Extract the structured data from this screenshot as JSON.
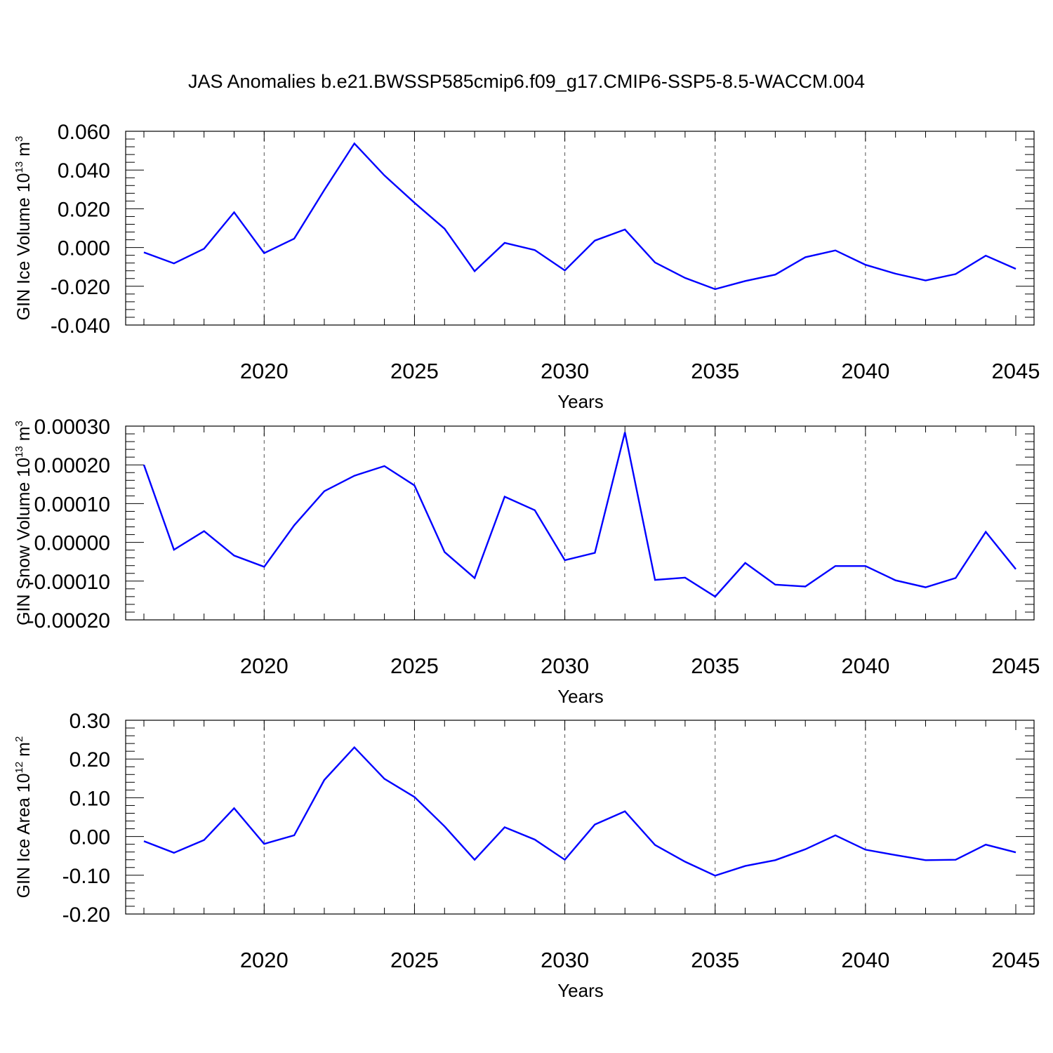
{
  "chart_data": {
    "title": "JAS Anomalies b.e21.BWSSP585cmip6.f09_g17.CMIP6-SSP5-8.5-WACCM.004",
    "series_color": "#0000ff",
    "plots": [
      {
        "type": "line",
        "ylabel": "GIN Ice Volume 10",
        "ylabel_exponent": "13",
        "ylabel_unit": "m",
        "ylabel_unit_exponent": "3",
        "xlabel": "Years",
        "xlim": [
          2016,
          2045
        ],
        "ylim": [
          -0.04,
          0.06
        ],
        "ytick_values": [
          0.06,
          0.04,
          0.02,
          0.0,
          -0.02,
          -0.04
        ],
        "ytick_labels": [
          "0.060",
          "0.040",
          "0.020",
          "0.000",
          "-0.020",
          "-0.040"
        ],
        "xtick_values": [
          2020,
          2025,
          2030,
          2035,
          2040,
          2045
        ],
        "xtick_labels": [
          "2020",
          "2025",
          "2030",
          "2035",
          "2040",
          "2045"
        ],
        "x": [
          2016,
          2017,
          2018,
          2019,
          2020,
          2021,
          2022,
          2023,
          2024,
          2025,
          2026,
          2027,
          2028,
          2029,
          2030,
          2031,
          2032,
          2033,
          2034,
          2035,
          2036,
          2037,
          2038,
          2039,
          2040,
          2041,
          2042,
          2043,
          2044,
          2045
        ],
        "values": [
          -0.0025,
          -0.0082,
          -0.0006,
          0.0182,
          -0.0029,
          0.0046,
          0.0297,
          0.0537,
          0.0372,
          0.0231,
          0.0097,
          -0.0122,
          0.0024,
          -0.0013,
          -0.0118,
          0.0036,
          0.0093,
          -0.0077,
          -0.0157,
          -0.0215,
          -0.0173,
          -0.014,
          -0.005,
          -0.0015,
          -0.0089,
          -0.0135,
          -0.017,
          -0.0137,
          -0.0042,
          -0.011
        ]
      },
      {
        "type": "line",
        "ylabel": "GIN Snow Volume 10",
        "ylabel_exponent": "13",
        "ylabel_unit": "m",
        "ylabel_unit_exponent": "3",
        "xlabel": "Years",
        "xlim": [
          2016,
          2045
        ],
        "ylim": [
          -0.0002,
          0.0003
        ],
        "ytick_values": [
          0.0003,
          0.0002,
          0.0001,
          0.0,
          -0.0001,
          -0.0002
        ],
        "ytick_labels": [
          "0.00030",
          "0.00020",
          "0.00010",
          "0.00000",
          "-0.00010",
          "-0.00020"
        ],
        "xtick_values": [
          2020,
          2025,
          2030,
          2035,
          2040,
          2045
        ],
        "xtick_labels": [
          "2020",
          "2025",
          "2030",
          "2035",
          "2040",
          "2045"
        ],
        "x": [
          2016,
          2017,
          2018,
          2019,
          2020,
          2021,
          2022,
          2023,
          2024,
          2025,
          2026,
          2027,
          2028,
          2029,
          2030,
          2031,
          2032,
          2033,
          2034,
          2035,
          2036,
          2037,
          2038,
          2039,
          2040,
          2041,
          2042,
          2043,
          2044,
          2045
        ],
        "values": [
          0.0002,
          -1.9e-05,
          2.9e-05,
          -3.4e-05,
          -6.3e-05,
          4.4e-05,
          0.000132,
          0.000172,
          0.000197,
          0.000147,
          -2.5e-05,
          -9.2e-05,
          0.000118,
          8.3e-05,
          -4.6e-05,
          -2.7e-05,
          0.000284,
          -9.7e-05,
          -9.1e-05,
          -0.00014,
          -5.3e-05,
          -0.000109,
          -0.000114,
          -6.1e-05,
          -6.1e-05,
          -9.8e-05,
          -0.000116,
          -9.2e-05,
          2.7e-05,
          -6.9e-05
        ]
      },
      {
        "type": "line",
        "ylabel": "GIN Ice Area 10",
        "ylabel_exponent": "12",
        "ylabel_unit": "m",
        "ylabel_unit_exponent": "2",
        "xlabel": "Years",
        "xlim": [
          2016,
          2045
        ],
        "ylim": [
          -0.2,
          0.3
        ],
        "ytick_values": [
          0.3,
          0.2,
          0.1,
          0.0,
          -0.1,
          -0.2
        ],
        "ytick_labels": [
          "0.30",
          "0.20",
          "0.10",
          "0.00",
          "-0.10",
          "-0.20"
        ],
        "xtick_values": [
          2020,
          2025,
          2030,
          2035,
          2040,
          2045
        ],
        "xtick_labels": [
          "2020",
          "2025",
          "2030",
          "2035",
          "2040",
          "2045"
        ],
        "x": [
          2016,
          2017,
          2018,
          2019,
          2020,
          2021,
          2022,
          2023,
          2024,
          2025,
          2026,
          2027,
          2028,
          2029,
          2030,
          2031,
          2032,
          2033,
          2034,
          2035,
          2036,
          2037,
          2038,
          2039,
          2040,
          2041,
          2042,
          2043,
          2044,
          2045
        ],
        "values": [
          -0.012,
          -0.042,
          -0.009,
          0.073,
          -0.019,
          0.003,
          0.146,
          0.23,
          0.149,
          0.102,
          0.026,
          -0.06,
          0.024,
          -0.008,
          -0.06,
          0.031,
          0.065,
          -0.022,
          -0.065,
          -0.101,
          -0.076,
          -0.061,
          -0.033,
          0.003,
          -0.034,
          -0.048,
          -0.061,
          -0.06,
          -0.021,
          -0.041
        ]
      }
    ]
  }
}
